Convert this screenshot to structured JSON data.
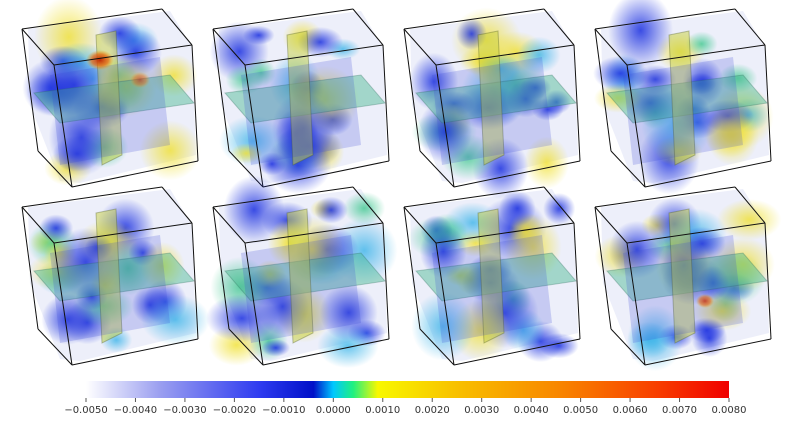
{
  "figure": {
    "panel_rows": 2,
    "panel_cols": 4,
    "panels": [
      {
        "row": 1,
        "col": 1,
        "hotspot": "red-orange"
      },
      {
        "row": 1,
        "col": 2,
        "hotspot": "none"
      },
      {
        "row": 1,
        "col": 3,
        "hotspot": "none"
      },
      {
        "row": 1,
        "col": 4,
        "hotspot": "none"
      },
      {
        "row": 2,
        "col": 1,
        "hotspot": "none"
      },
      {
        "row": 2,
        "col": 2,
        "hotspot": "none"
      },
      {
        "row": 2,
        "col": 3,
        "hotspot": "none"
      },
      {
        "row": 2,
        "col": 4,
        "hotspot": "orange"
      }
    ]
  },
  "colorbar": {
    "min": -0.005,
    "max": 0.008,
    "tick_labels": [
      "−0.0050",
      "−0.0040",
      "−0.0030",
      "−0.0020",
      "−0.0010",
      "0.0000",
      "0.0010",
      "0.0020",
      "0.0030",
      "0.0040",
      "0.0050",
      "0.0060",
      "0.0070",
      "0.0080"
    ],
    "stops": [
      {
        "value": -0.005,
        "color": "#ffffff"
      },
      {
        "value": -0.0035,
        "color": "#9a9ef0"
      },
      {
        "value": -0.0015,
        "color": "#2f3cf0"
      },
      {
        "value": -0.0004,
        "color": "#0010c8"
      },
      {
        "value": 0.0,
        "color": "#00c8ff"
      },
      {
        "value": 0.0004,
        "color": "#20f080"
      },
      {
        "value": 0.0009,
        "color": "#f8f800"
      },
      {
        "value": 0.0025,
        "color": "#f8c000"
      },
      {
        "value": 0.0045,
        "color": "#f88800"
      },
      {
        "value": 0.0065,
        "color": "#f84000"
      },
      {
        "value": 0.008,
        "color": "#f00000"
      }
    ]
  }
}
